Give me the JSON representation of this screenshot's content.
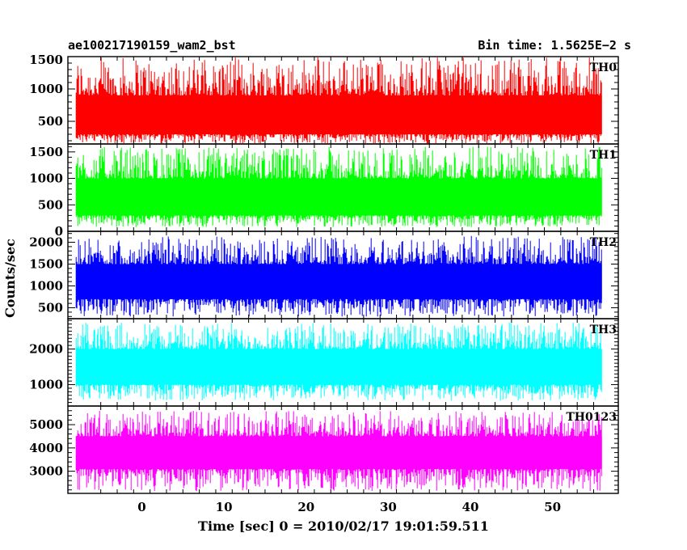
{
  "header": {
    "title": "ae100217190159_wam2_bst",
    "bin_time": "Bin time: 1.5625E−2 s"
  },
  "chart_data": {
    "type": "line",
    "xlabel": "Time [sec] 0 = 2010/02/17 19:01:59.511",
    "ylabel": "Counts/sec",
    "xlim": [
      -9,
      58
    ],
    "x_data_range": [
      -8,
      56
    ],
    "xticks": [
      0,
      10,
      20,
      30,
      40,
      50
    ],
    "panels": [
      {
        "name": "TH0",
        "color": "#ff0000",
        "ylim": [
          150,
          1500
        ],
        "yticks": [
          500,
          1000,
          1500
        ],
        "baseline": 600,
        "band_low": 300,
        "band_high": 900,
        "spike_max": 1500,
        "dip_min": 150
      },
      {
        "name": "TH1",
        "color": "#00ff00",
        "ylim": [
          0,
          1650
        ],
        "yticks": [
          0,
          500,
          1000,
          1500
        ],
        "baseline": 600,
        "band_low": 300,
        "band_high": 1000,
        "spike_max": 1600,
        "dip_min": 80
      },
      {
        "name": "TH2",
        "color": "#0000ff",
        "ylim": [
          250,
          2250
        ],
        "yticks": [
          500,
          1000,
          1500,
          2000
        ],
        "baseline": 1100,
        "band_low": 700,
        "band_high": 1500,
        "spike_max": 2150,
        "dip_min": 300
      },
      {
        "name": "TH3",
        "color": "#00ffff",
        "ylim": [
          400,
          2850
        ],
        "yticks": [
          1000,
          2000
        ],
        "baseline": 1500,
        "band_low": 1000,
        "band_high": 2000,
        "spike_max": 2750,
        "dip_min": 550
      },
      {
        "name": "TH0123",
        "color": "#ff00ff",
        "ylim": [
          2050,
          5800
        ],
        "yticks": [
          3000,
          4000,
          5000
        ],
        "baseline": 3700,
        "band_low": 3100,
        "band_high": 4500,
        "spike_max": 5600,
        "dip_min": 2150
      }
    ]
  }
}
